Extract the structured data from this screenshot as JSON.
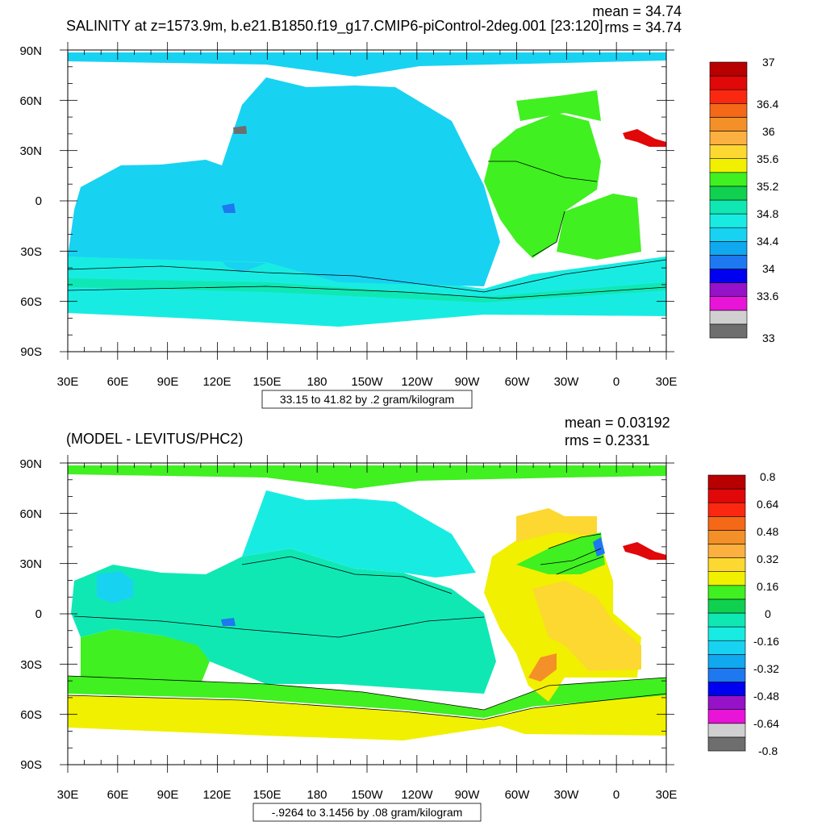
{
  "panels": [
    {
      "id": "top",
      "title": "SALINITY at z=1573.9m, b.e21.B1850.f19_g17.CMIP6-piControl-2deg.001 [23:120]",
      "mean_label": "mean = 34.74",
      "rms_label": "rms = 34.74",
      "range_label": "33.15 to 41.82 by .2 gram/kilogram",
      "colorbar": {
        "colors": [
          "#6e6e6e",
          "#d0d0d0",
          "#e814d8",
          "#9612c8",
          "#0000f0",
          "#1e78f0",
          "#10a8ee",
          "#18d2f2",
          "#18ece2",
          "#10e8b4",
          "#10d050",
          "#40f020",
          "#f0f000",
          "#fcd830",
          "#fcb040",
          "#f49028",
          "#f46818",
          "#fa2810",
          "#e00808",
          "#b80000"
        ],
        "labels": [
          "37",
          "36.4",
          "36",
          "35.6",
          "35.2",
          "34.8",
          "34.4",
          "34",
          "33.6",
          "33"
        ]
      }
    },
    {
      "id": "bottom",
      "title": "(MODEL - LEVITUS/PHC2)",
      "mean_label": "mean = 0.03192",
      "rms_label": "rms = 0.2331",
      "range_label": "-.9264 to 3.1456 by .08 gram/kilogram",
      "colorbar": {
        "colors": [
          "#6e6e6e",
          "#d0d0d0",
          "#e814d8",
          "#9612c8",
          "#0000f0",
          "#1e78f0",
          "#10a8ee",
          "#18d2f2",
          "#18ece2",
          "#10e8b4",
          "#10d050",
          "#40f020",
          "#f0f000",
          "#fcd830",
          "#fcb040",
          "#f49028",
          "#f46818",
          "#fa2810",
          "#e00808",
          "#b80000"
        ],
        "labels": [
          "0.8",
          "0.64",
          "0.48",
          "0.32",
          "0.16",
          "0",
          "-0.16",
          "-0.32",
          "-0.48",
          "-0.64",
          "-0.8"
        ]
      }
    }
  ],
  "axes": {
    "y_labels": [
      "90N",
      "60N",
      "30N",
      "0",
      "30S",
      "60S",
      "90S"
    ],
    "x_labels": [
      "30E",
      "60E",
      "90E",
      "120E",
      "150E",
      "180",
      "150W",
      "120W",
      "90W",
      "60W",
      "30W",
      "0",
      "30E"
    ]
  }
}
